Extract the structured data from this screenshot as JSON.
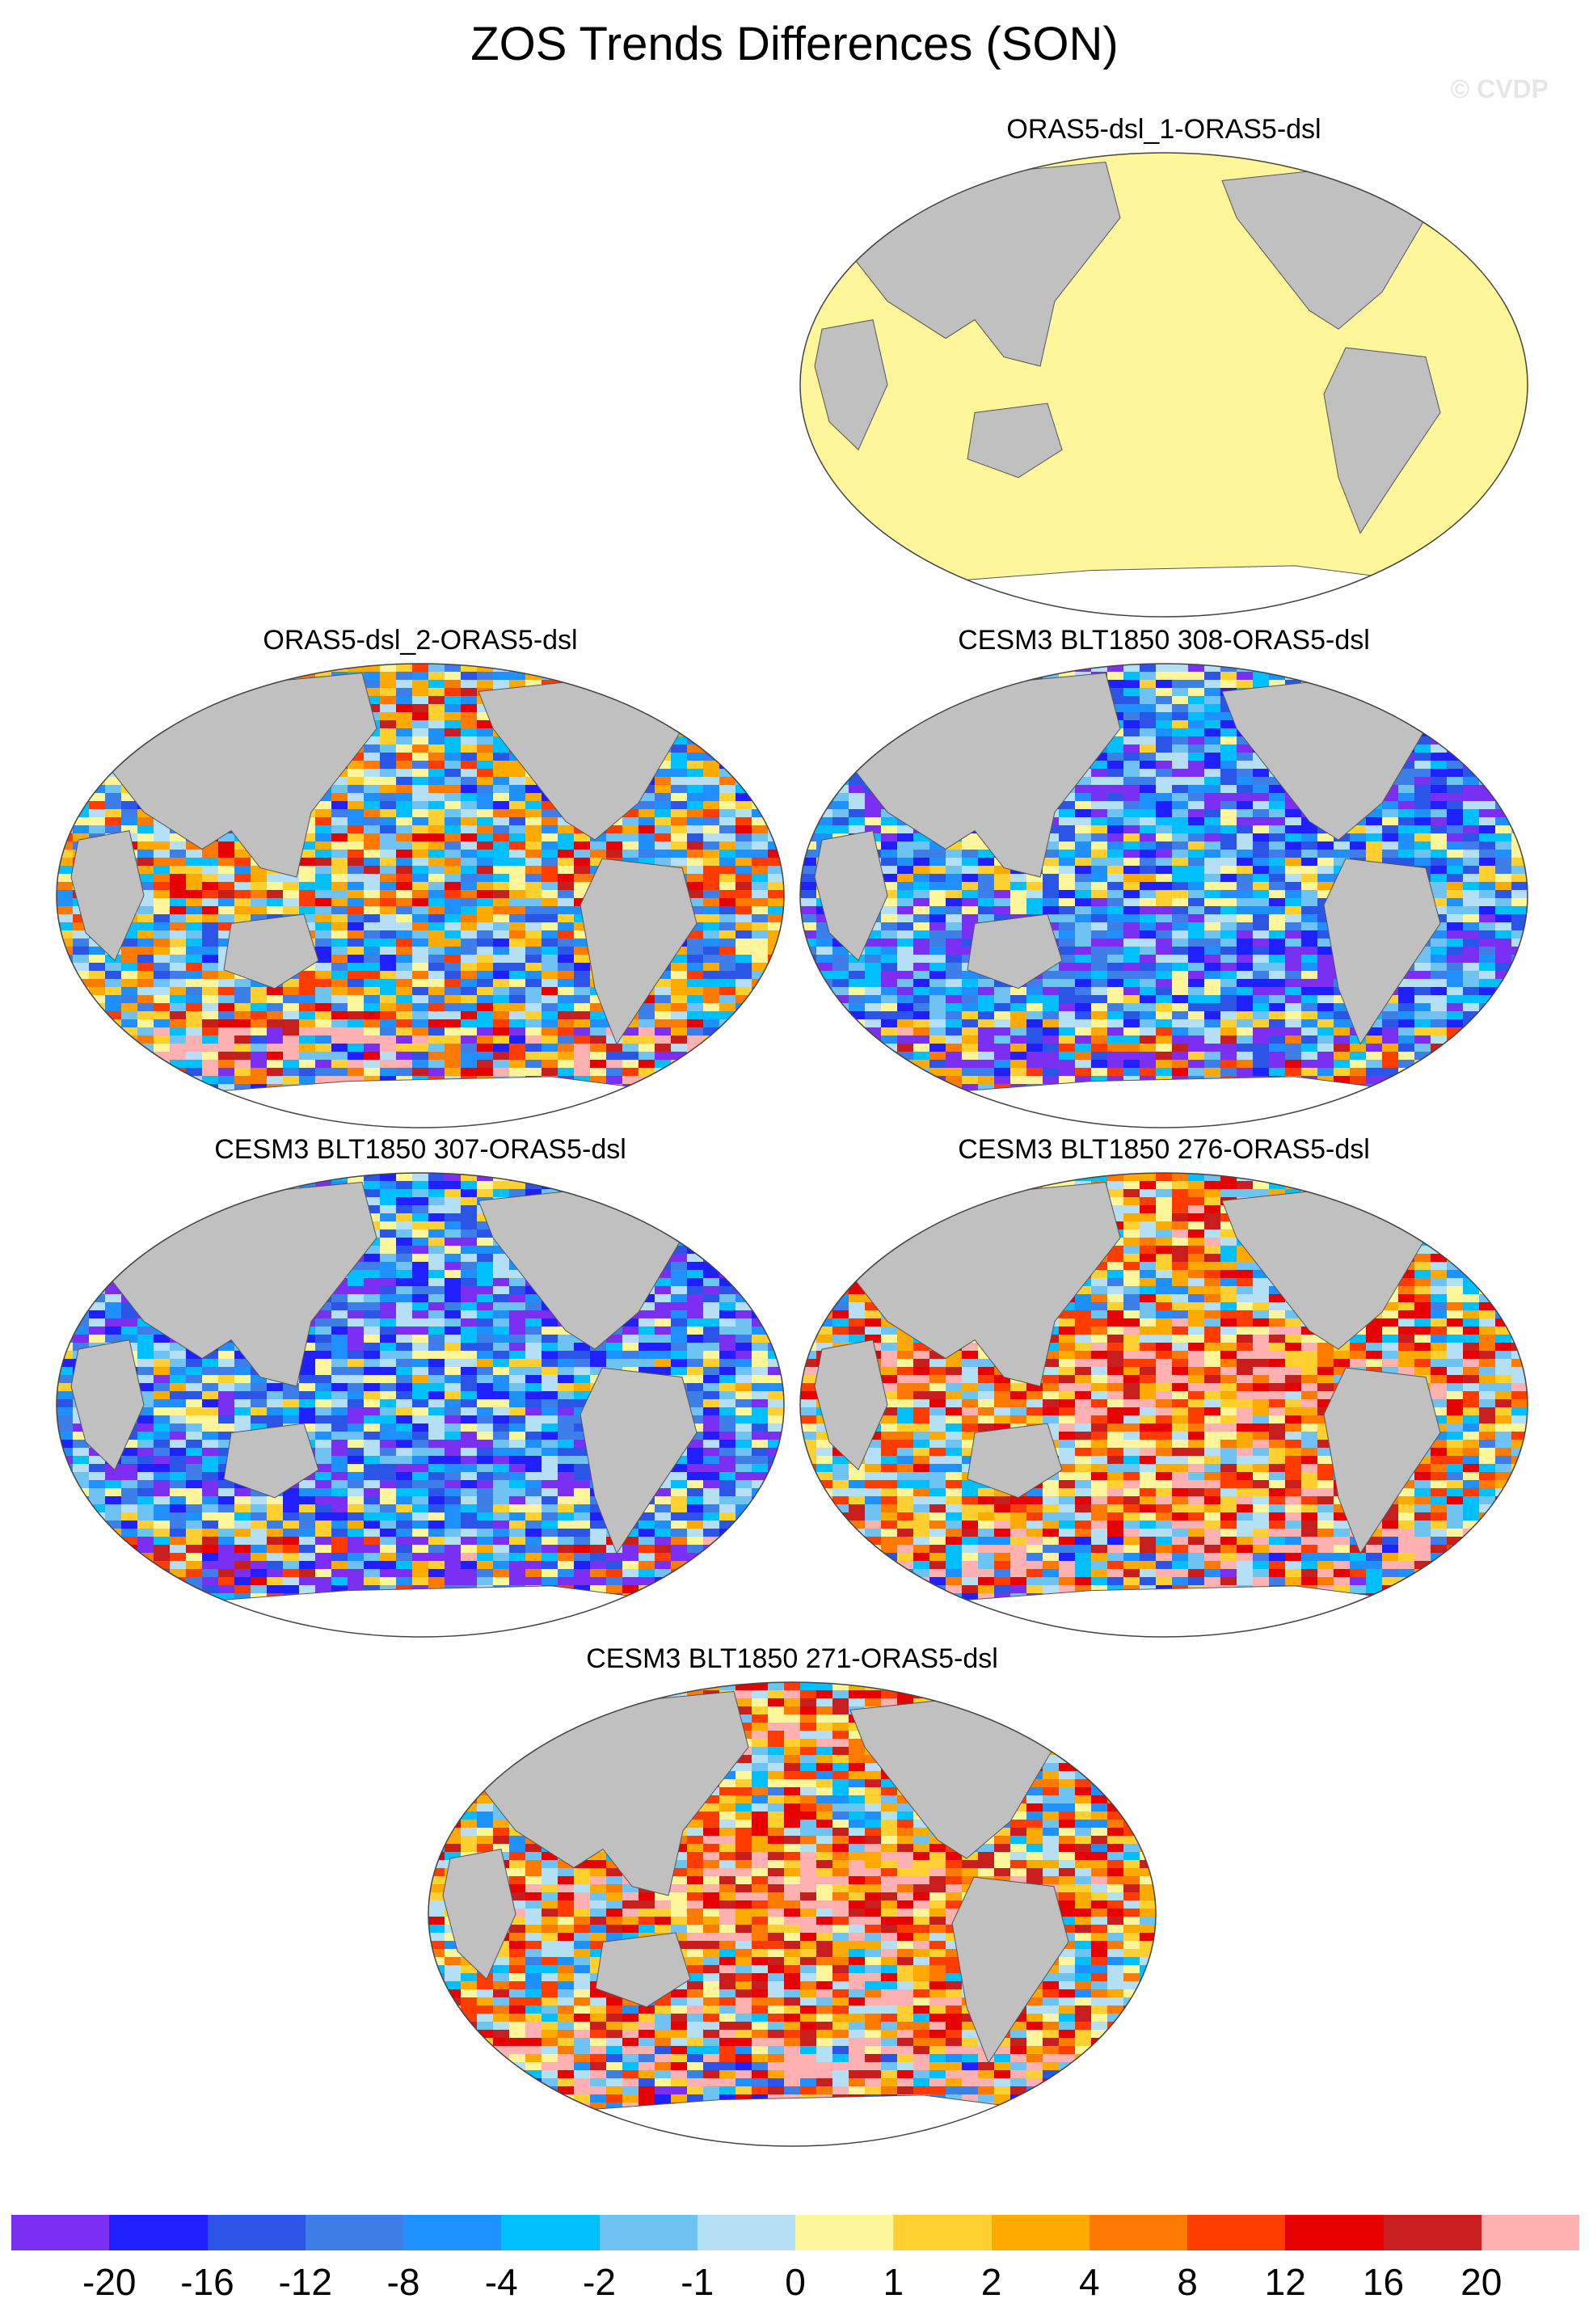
{
  "title": "ZOS Trends Differences (SON)",
  "credit": "© CVDP",
  "panels": [
    {
      "label": "ORAS5-dsl_1-ORAS5-dsl",
      "pattern": "uniform-zero"
    },
    {
      "label": "ORAS5-dsl_2-ORAS5-dsl",
      "pattern": "mixed"
    },
    {
      "label": "CESM3 BLT1850 308-ORAS5-dsl",
      "pattern": "mostly-negative"
    },
    {
      "label": "CESM3 BLT1850 307-ORAS5-dsl",
      "pattern": "mostly-negative"
    },
    {
      "label": "CESM3 BLT1850 276-ORAS5-dsl",
      "pattern": "positive-pacific"
    },
    {
      "label": "CESM3 BLT1850 271-ORAS5-dsl",
      "pattern": "positive-pacific"
    }
  ],
  "colorbar": {
    "colors": [
      "#7b2ff2",
      "#1f1fff",
      "#2b55e6",
      "#3d7ee8",
      "#1e90ff",
      "#00bfff",
      "#6ec3f2",
      "#b5dff5",
      "#fff59a",
      "#ffd030",
      "#ffaa00",
      "#ff7a00",
      "#ff3c00",
      "#e60000",
      "#c81e1e",
      "#ffb0b0"
    ],
    "labels": [
      "-20",
      "-16",
      "-12",
      "-8",
      "-4",
      "-2",
      "-1",
      "0",
      "1",
      "2",
      "4",
      "8",
      "12",
      "16",
      "20"
    ]
  },
  "land_color": "#c0c0c0",
  "zero_color": "#fff59a"
}
